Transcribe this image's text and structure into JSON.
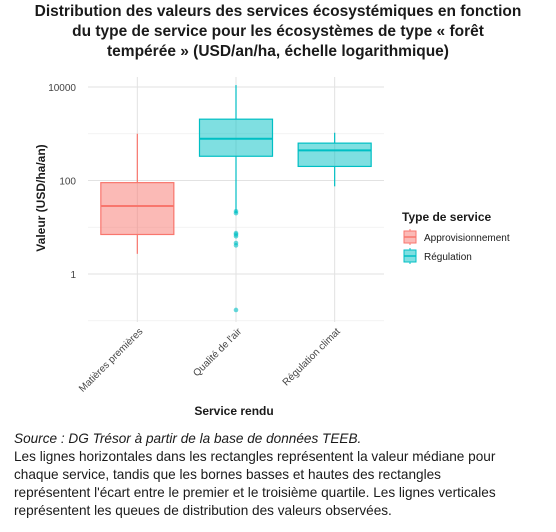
{
  "chart_data": {
    "type": "boxplot",
    "title_lines": [
      "Distribution des valeurs des services écosystémiques en fonction",
      "du type de service pour les écosystèmes de type « forêt",
      "tempérée » (USD/an/ha, échelle logarithmique)"
    ],
    "xlabel": "Service rendu",
    "ylabel": "Valeur (USD/ha/an)",
    "y_scale": "log10",
    "ylim": [
      0.15,
      15000
    ],
    "yticks": [
      1,
      100,
      10000
    ],
    "ytick_labels": [
      "1",
      "100",
      "10000"
    ],
    "grid": true,
    "legend": {
      "title": "Type de service",
      "position": "right",
      "entries": [
        {
          "label": "Approvisionnement",
          "color": "#f8766d"
        },
        {
          "label": "Régulation",
          "color": "#00bfc4"
        }
      ]
    },
    "categories": [
      "Matières premières",
      "Qualité de l'air",
      "Régulation climat"
    ],
    "boxes": [
      {
        "category": "Matières premières",
        "group": "Approvisionnement",
        "whisker_low": 2.7,
        "q1": 7.0,
        "median": 28.5,
        "q3": 90,
        "whisker_high": 1000,
        "outliers": []
      },
      {
        "category": "Qualité de l'air",
        "group": "Régulation",
        "whisker_low": 20,
        "q1": 330,
        "median": 780,
        "q3": 2050,
        "whisker_high": 11000,
        "outliers": [
          0.17,
          4.1,
          4.6,
          6.4,
          7.0,
          7.5,
          20,
          22
        ]
      },
      {
        "category": "Régulation climat",
        "group": "Régulation",
        "whisker_low": 75,
        "q1": 200,
        "median": 440,
        "q3": 630,
        "whisker_high": 1050,
        "outliers": []
      }
    ]
  },
  "caption": {
    "source": "Source : DG Trésor à partir de la base de données TEEB.",
    "note_lines": [
      "Les lignes horizontales dans les rectangles représentent la valeur médiane pour",
      "chaque service, tandis que les bornes basses et hautes des rectangles",
      "représentent l'écart entre le premier et le troisième quartile. Les lignes verticales",
      "représentent les queues de distribution des valeurs observées."
    ]
  }
}
